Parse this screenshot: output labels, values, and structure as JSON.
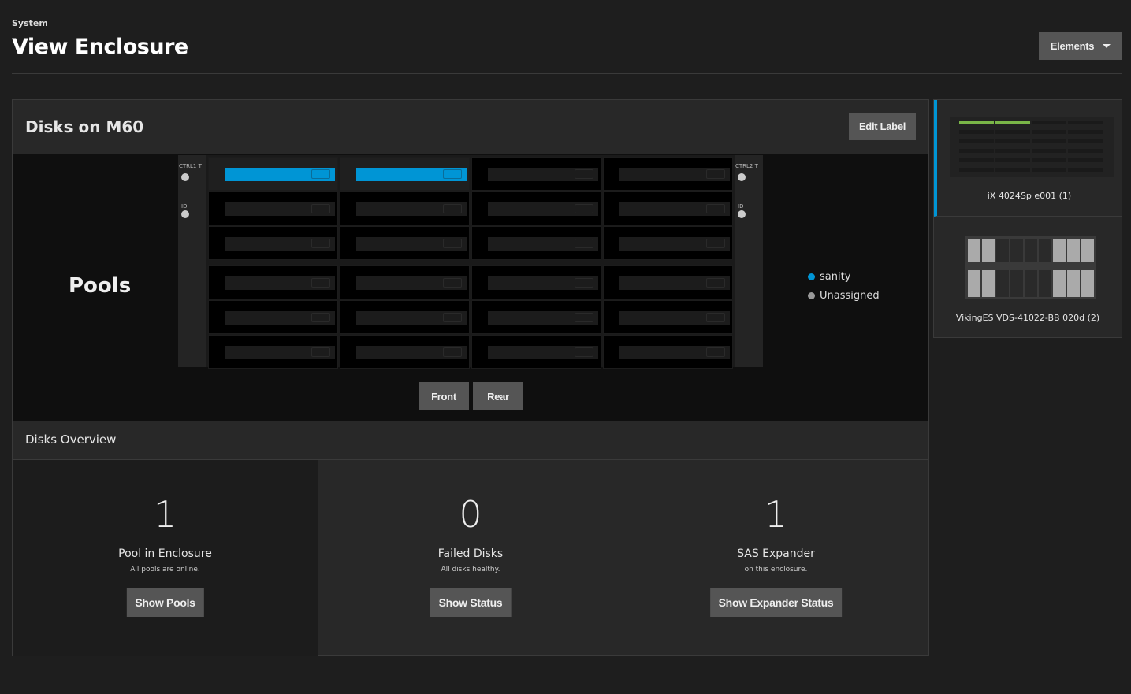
{
  "header": {
    "breadcrumb": "System",
    "title": "View Enclosure",
    "elements_button": "Elements"
  },
  "card": {
    "title": "Disks on M60",
    "edit_label_button": "Edit Label",
    "view_label": "Pools",
    "controllers": [
      "CTRL1 T",
      "CTRL2 T"
    ],
    "id_label": "ID",
    "legend": [
      {
        "name": "sanity",
        "color": "#0095d5"
      },
      {
        "name": "Unassigned",
        "color": "#999999"
      }
    ],
    "slots": [
      "sanity",
      "sanity",
      "Unassigned",
      "Unassigned",
      "Unassigned",
      "Unassigned",
      "Unassigned",
      "Unassigned",
      "Unassigned",
      "Unassigned",
      "Unassigned",
      "Unassigned",
      "Unassigned",
      "Unassigned",
      "Unassigned",
      "Unassigned",
      "Unassigned",
      "Unassigned",
      "Unassigned",
      "Unassigned",
      "Unassigned",
      "Unassigned",
      "Unassigned",
      "Unassigned"
    ],
    "view_buttons": {
      "front": "Front",
      "rear": "Rear"
    }
  },
  "overview": {
    "title": "Disks Overview",
    "cells": [
      {
        "value": "1",
        "label": "Pool in Enclosure",
        "sub": "All pools are online.",
        "button": "Show Pools"
      },
      {
        "value": "0",
        "label": "Failed Disks",
        "sub": "All disks healthy.",
        "button": "Show Status"
      },
      {
        "value": "1",
        "label": "SAS Expander",
        "sub": "on this enclosure.",
        "button": "Show Expander Status"
      }
    ]
  },
  "enclosures": [
    {
      "label": "iX 4024Sp e001 (1)",
      "selected": true,
      "accent": "#7ab648"
    },
    {
      "label": "VikingES VDS-41022-BB 020d (2)",
      "selected": false
    }
  ]
}
